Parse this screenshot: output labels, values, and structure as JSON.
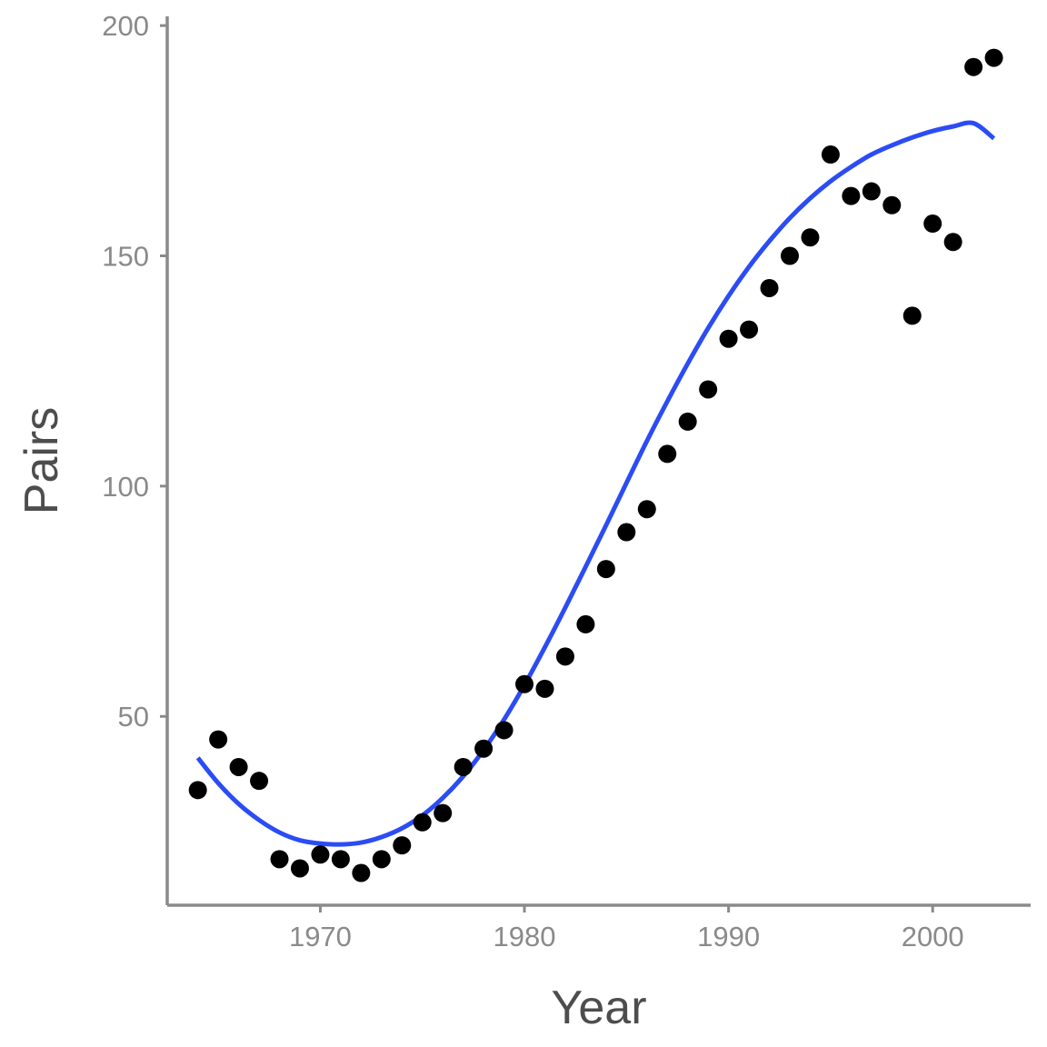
{
  "chart_data": {
    "type": "scatter",
    "title": "",
    "xlabel": "Year",
    "ylabel": "Pairs",
    "xlim": [
      1962.5,
      2004.8
    ],
    "ylim": [
      9,
      202
    ],
    "x_ticks": [
      1970,
      1980,
      1990,
      2000
    ],
    "y_ticks": [
      50,
      100,
      150,
      200
    ],
    "x_tick_labels": [
      "1970",
      "1980",
      "1990",
      "2000"
    ],
    "y_tick_labels": [
      "50",
      "100",
      "150",
      "200"
    ],
    "grid": false,
    "legend": "none",
    "colors": {
      "points": "#000000",
      "trend": "#2b4cf5",
      "axis": "#8a8a8a"
    },
    "series": [
      {
        "kind": "points",
        "x": [
          1964,
          1965,
          1966,
          1967,
          1968,
          1969,
          1970,
          1971,
          1972,
          1973,
          1974,
          1975,
          1976,
          1977,
          1978,
          1979,
          1980,
          1981,
          1982,
          1983,
          1984,
          1985,
          1986,
          1987,
          1988,
          1989,
          1990,
          1991,
          1992,
          1993,
          1994,
          1995,
          1996,
          1997,
          1998,
          1999,
          2000,
          2001,
          2002,
          2003
        ],
        "y": [
          34,
          45,
          39,
          36,
          19,
          17,
          20,
          19,
          16,
          19,
          22,
          27,
          29,
          39,
          43,
          47,
          57,
          56,
          63,
          70,
          82,
          90,
          95,
          107,
          114,
          121,
          132,
          134,
          143,
          150,
          154,
          172,
          163,
          164,
          161,
          137,
          157,
          153,
          191,
          193
        ]
      },
      {
        "kind": "trend",
        "x": [
          1964,
          1965,
          1966,
          1967,
          1968,
          1969,
          1970,
          1971,
          1972,
          1973,
          1974,
          1975,
          1976,
          1977,
          1978,
          1979,
          1980,
          1981,
          1982,
          1983,
          1984,
          1985,
          1986,
          1987,
          1988,
          1989,
          1990,
          1991,
          1992,
          1993,
          1994,
          1995,
          1996,
          1997,
          1998,
          1999,
          2000,
          2001,
          2002,
          2003
        ],
        "y": [
          41,
          35.5,
          31,
          27.5,
          24.8,
          23.1,
          22.4,
          22.2,
          22.6,
          23.8,
          25.7,
          28.5,
          32.3,
          37,
          42.7,
          49.3,
          56.8,
          65,
          73.6,
          82.5,
          91.5,
          100.7,
          109.8,
          118.4,
          126.6,
          134.3,
          141.3,
          147.6,
          153.2,
          158.2,
          162.5,
          166.2,
          169.3,
          172,
          174,
          175.7,
          177.1,
          178.1,
          178.8,
          175.5
        ]
      }
    ]
  }
}
